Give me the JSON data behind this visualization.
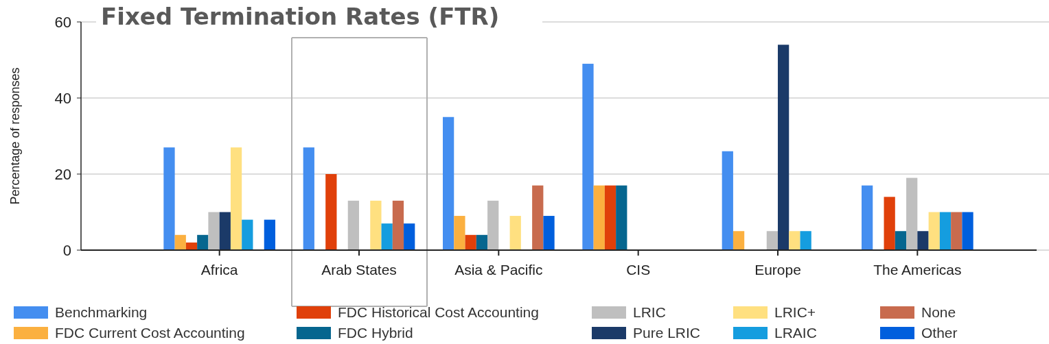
{
  "chart_data": {
    "type": "bar",
    "title": "Fixed Termination Rates (FTR)",
    "ylabel": "Percentage of responses",
    "categories": [
      "Africa",
      "Arab States",
      "Asia & Pacific",
      "CIS",
      "Europe",
      "The Americas"
    ],
    "series": [
      {
        "name": "Benchmarking",
        "color": "#448ef0",
        "values": [
          27,
          27,
          35,
          49,
          26,
          17
        ]
      },
      {
        "name": "FDC Current Cost Accounting",
        "color": "#fbb040",
        "values": [
          4,
          null,
          9,
          17,
          5,
          null
        ]
      },
      {
        "name": "FDC Historical Cost Accounting",
        "color": "#e0400a",
        "values": [
          2,
          20,
          4,
          17,
          null,
          14
        ]
      },
      {
        "name": "FDC Hybrid",
        "color": "#06668f",
        "values": [
          4,
          null,
          4,
          17,
          null,
          5
        ]
      },
      {
        "name": "LRIC",
        "color": "#bfbfbf",
        "values": [
          10,
          13,
          13,
          null,
          5,
          19
        ]
      },
      {
        "name": "Pure LRIC",
        "color": "#1b3a68",
        "values": [
          10,
          null,
          null,
          null,
          54,
          5
        ]
      },
      {
        "name": "LRIC+",
        "color": "#ffe080",
        "values": [
          27,
          13,
          9,
          null,
          5,
          10
        ]
      },
      {
        "name": "LRAIC",
        "color": "#159ddf",
        "values": [
          8,
          7,
          null,
          null,
          5,
          10
        ]
      },
      {
        "name": "None",
        "color": "#c86b4e",
        "values": [
          null,
          13,
          17,
          null,
          null,
          10
        ]
      },
      {
        "name": "Other",
        "color": "#005fdd",
        "values": [
          8,
          7,
          9,
          null,
          null,
          10
        ]
      }
    ],
    "ylim": [
      0,
      60
    ],
    "yticks": [
      0,
      20,
      40,
      60
    ],
    "grid": "y",
    "legend": "bottom"
  }
}
